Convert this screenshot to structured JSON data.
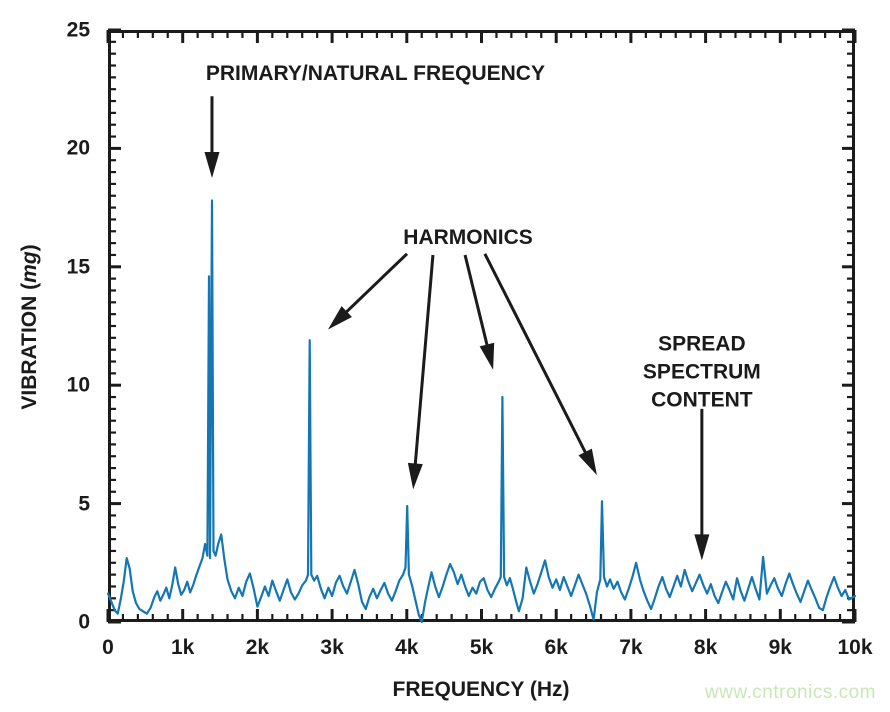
{
  "figure": {
    "background": "#ffffff",
    "text_color": "#1b1b1b",
    "watermark": {
      "text": "www.cntronics.com",
      "color": "#c9e7b4"
    }
  },
  "chart_data": {
    "type": "line",
    "title": "",
    "xlabel": "FREQUENCY (Hz)",
    "ylabel": "VIBRATION (mg)",
    "ylabel_parts": {
      "prefix": "VIBRATION (",
      "italic": "mg",
      "suffix": ")"
    },
    "xlim": [
      0,
      10000
    ],
    "ylim": [
      0,
      25
    ],
    "grid": false,
    "legend": null,
    "x_tick_values": [
      0,
      1000,
      2000,
      3000,
      4000,
      5000,
      6000,
      7000,
      8000,
      9000,
      10000
    ],
    "x_tick_labels": [
      "0",
      "1k",
      "2k",
      "3k",
      "4k",
      "5k",
      "6k",
      "7k",
      "8k",
      "9k",
      "10k"
    ],
    "x_minor_step": 200,
    "y_tick_values": [
      0,
      5,
      10,
      15,
      20,
      25
    ],
    "y_tick_labels": [
      "0",
      "5",
      "10",
      "15",
      "20",
      "25"
    ],
    "y_minor_step": 0.5,
    "line_color": "#1476b4",
    "frame_color": "#1b1b1b",
    "peaks": [
      {
        "label": "primary/natural frequency",
        "freq_hz": 1392,
        "vibration_mg": 17.8
      },
      {
        "label": "harmonic",
        "freq_hz": 2700,
        "vibration_mg": 11.9
      },
      {
        "label": "harmonic",
        "freq_hz": 4005,
        "vibration_mg": 4.9
      },
      {
        "label": "harmonic",
        "freq_hz": 5280,
        "vibration_mg": 9.5
      },
      {
        "label": "harmonic",
        "freq_hz": 6613,
        "vibration_mg": 5.1
      }
    ],
    "annotations": [
      {
        "id": "primary-label",
        "text": "PRIMARY/NATURAL FREQUENCY",
        "x": 3580,
        "y": 23.15
      },
      {
        "id": "harmonics-label",
        "text": "HARMONICS",
        "x": 4820,
        "y": 16.2
      },
      {
        "id": "spread-label",
        "text": "SPREAD SPECTRUM\nCONTENT",
        "x": 7950,
        "y": 10.55
      }
    ],
    "arrows": [
      {
        "from": [
          1392,
          22.2
        ],
        "to": [
          1392,
          18.75
        ]
      },
      {
        "from": [
          4003,
          15.55
        ],
        "to": [
          2945,
          12.35
        ]
      },
      {
        "from": [
          4350,
          15.5
        ],
        "to": [
          4085,
          5.6
        ]
      },
      {
        "from": [
          4780,
          15.5
        ],
        "to": [
          5155,
          10.65
        ]
      },
      {
        "from": [
          5045,
          15.55
        ],
        "to": [
          6545,
          6.2
        ]
      },
      {
        "from": [
          7950,
          9.0
        ],
        "to": [
          7950,
          2.6
        ]
      }
    ],
    "series": [
      {
        "name": "vibration_spectrum",
        "points": [
          [
            0,
            1.2
          ],
          [
            45,
            0.85
          ],
          [
            90,
            0.5
          ],
          [
            130,
            0.35
          ],
          [
            170,
            0.95
          ],
          [
            210,
            1.7
          ],
          [
            250,
            2.7
          ],
          [
            290,
            2.25
          ],
          [
            330,
            1.3
          ],
          [
            375,
            0.8
          ],
          [
            420,
            0.55
          ],
          [
            470,
            0.45
          ],
          [
            520,
            0.35
          ],
          [
            570,
            0.6
          ],
          [
            620,
            1.05
          ],
          [
            660,
            1.3
          ],
          [
            700,
            0.9
          ],
          [
            740,
            1.15
          ],
          [
            780,
            1.45
          ],
          [
            820,
            1.0
          ],
          [
            860,
            1.55
          ],
          [
            900,
            2.3
          ],
          [
            940,
            1.6
          ],
          [
            980,
            1.15
          ],
          [
            1020,
            1.35
          ],
          [
            1060,
            1.7
          ],
          [
            1100,
            1.25
          ],
          [
            1145,
            1.6
          ],
          [
            1185,
            2.0
          ],
          [
            1225,
            2.35
          ],
          [
            1265,
            2.7
          ],
          [
            1300,
            3.3
          ],
          [
            1330,
            2.8
          ],
          [
            1352,
            14.6
          ],
          [
            1366,
            2.7
          ],
          [
            1392,
            17.8
          ],
          [
            1412,
            3.0
          ],
          [
            1440,
            2.8
          ],
          [
            1475,
            3.3
          ],
          [
            1515,
            3.7
          ],
          [
            1555,
            2.7
          ],
          [
            1600,
            1.8
          ],
          [
            1650,
            1.3
          ],
          [
            1700,
            1.0
          ],
          [
            1750,
            1.45
          ],
          [
            1800,
            1.1
          ],
          [
            1850,
            1.7
          ],
          [
            1900,
            2.05
          ],
          [
            1950,
            1.4
          ],
          [
            2000,
            0.65
          ],
          [
            2050,
            1.05
          ],
          [
            2100,
            1.5
          ],
          [
            2150,
            1.1
          ],
          [
            2200,
            1.75
          ],
          [
            2250,
            1.3
          ],
          [
            2300,
            0.9
          ],
          [
            2350,
            1.35
          ],
          [
            2400,
            1.8
          ],
          [
            2450,
            1.25
          ],
          [
            2500,
            0.95
          ],
          [
            2550,
            1.2
          ],
          [
            2600,
            1.55
          ],
          [
            2650,
            1.75
          ],
          [
            2678,
            2.0
          ],
          [
            2700,
            11.9
          ],
          [
            2722,
            2.0
          ],
          [
            2760,
            1.75
          ],
          [
            2800,
            1.95
          ],
          [
            2850,
            1.4
          ],
          [
            2900,
            1.0
          ],
          [
            2950,
            1.45
          ],
          [
            3000,
            1.1
          ],
          [
            3050,
            1.65
          ],
          [
            3100,
            1.95
          ],
          [
            3150,
            1.5
          ],
          [
            3200,
            1.2
          ],
          [
            3250,
            1.7
          ],
          [
            3300,
            2.2
          ],
          [
            3350,
            1.6
          ],
          [
            3400,
            0.85
          ],
          [
            3450,
            0.55
          ],
          [
            3500,
            1.05
          ],
          [
            3550,
            1.4
          ],
          [
            3600,
            1.0
          ],
          [
            3650,
            1.35
          ],
          [
            3700,
            1.65
          ],
          [
            3750,
            1.2
          ],
          [
            3800,
            0.9
          ],
          [
            3850,
            1.3
          ],
          [
            3900,
            1.75
          ],
          [
            3950,
            2.0
          ],
          [
            3982,
            2.3
          ],
          [
            4005,
            4.9
          ],
          [
            4028,
            2.0
          ],
          [
            4070,
            1.55
          ],
          [
            4120,
            0.85
          ],
          [
            4160,
            0.3
          ],
          [
            4200,
            0.0
          ],
          [
            4245,
            0.85
          ],
          [
            4285,
            1.45
          ],
          [
            4330,
            2.1
          ],
          [
            4380,
            1.5
          ],
          [
            4430,
            1.05
          ],
          [
            4480,
            1.5
          ],
          [
            4530,
            2.0
          ],
          [
            4580,
            2.45
          ],
          [
            4630,
            2.1
          ],
          [
            4680,
            1.6
          ],
          [
            4730,
            2.0
          ],
          [
            4780,
            1.5
          ],
          [
            4830,
            1.1
          ],
          [
            4880,
            1.45
          ],
          [
            4930,
            1.2
          ],
          [
            4980,
            1.7
          ],
          [
            5030,
            1.85
          ],
          [
            5080,
            1.35
          ],
          [
            5130,
            1.05
          ],
          [
            5180,
            1.4
          ],
          [
            5230,
            1.7
          ],
          [
            5258,
            1.9
          ],
          [
            5280,
            9.5
          ],
          [
            5302,
            1.9
          ],
          [
            5340,
            1.55
          ],
          [
            5380,
            1.85
          ],
          [
            5420,
            1.4
          ],
          [
            5460,
            0.9
          ],
          [
            5500,
            0.45
          ],
          [
            5550,
            1.0
          ],
          [
            5600,
            2.3
          ],
          [
            5650,
            1.7
          ],
          [
            5700,
            1.2
          ],
          [
            5750,
            1.6
          ],
          [
            5800,
            2.1
          ],
          [
            5850,
            2.6
          ],
          [
            5900,
            1.9
          ],
          [
            5950,
            1.45
          ],
          [
            6000,
            1.8
          ],
          [
            6050,
            1.35
          ],
          [
            6100,
            1.9
          ],
          [
            6150,
            1.5
          ],
          [
            6200,
            1.1
          ],
          [
            6250,
            1.55
          ],
          [
            6300,
            2.0
          ],
          [
            6350,
            1.6
          ],
          [
            6400,
            1.2
          ],
          [
            6450,
            0.7
          ],
          [
            6500,
            0.1
          ],
          [
            6545,
            1.25
          ],
          [
            6590,
            1.8
          ],
          [
            6613,
            5.1
          ],
          [
            6640,
            1.9
          ],
          [
            6680,
            1.5
          ],
          [
            6720,
            1.8
          ],
          [
            6770,
            1.4
          ],
          [
            6820,
            1.7
          ],
          [
            6870,
            1.25
          ],
          [
            6920,
            0.95
          ],
          [
            6970,
            1.4
          ],
          [
            7020,
            1.9
          ],
          [
            7070,
            2.5
          ],
          [
            7120,
            1.8
          ],
          [
            7170,
            1.3
          ],
          [
            7220,
            0.9
          ],
          [
            7270,
            0.55
          ],
          [
            7320,
            1.0
          ],
          [
            7370,
            1.5
          ],
          [
            7420,
            1.9
          ],
          [
            7470,
            1.4
          ],
          [
            7520,
            1.05
          ],
          [
            7570,
            1.5
          ],
          [
            7620,
            1.95
          ],
          [
            7670,
            1.5
          ],
          [
            7720,
            2.2
          ],
          [
            7770,
            1.7
          ],
          [
            7820,
            1.3
          ],
          [
            7870,
            1.65
          ],
          [
            7920,
            2.0
          ],
          [
            7970,
            1.55
          ],
          [
            8020,
            1.2
          ],
          [
            8070,
            1.6
          ],
          [
            8120,
            1.1
          ],
          [
            8170,
            0.8
          ],
          [
            8220,
            1.25
          ],
          [
            8270,
            1.7
          ],
          [
            8320,
            1.35
          ],
          [
            8370,
            0.95
          ],
          [
            8420,
            1.85
          ],
          [
            8470,
            1.3
          ],
          [
            8520,
            0.9
          ],
          [
            8570,
            1.4
          ],
          [
            8620,
            1.9
          ],
          [
            8670,
            1.4
          ],
          [
            8720,
            0.95
          ],
          [
            8770,
            2.75
          ],
          [
            8820,
            1.2
          ],
          [
            8870,
            1.55
          ],
          [
            8920,
            1.85
          ],
          [
            8970,
            1.4
          ],
          [
            9020,
            1.1
          ],
          [
            9070,
            1.6
          ],
          [
            9120,
            2.05
          ],
          [
            9170,
            1.6
          ],
          [
            9220,
            1.2
          ],
          [
            9270,
            0.85
          ],
          [
            9320,
            1.3
          ],
          [
            9370,
            1.75
          ],
          [
            9420,
            1.35
          ],
          [
            9470,
            1.0
          ],
          [
            9520,
            0.6
          ],
          [
            9570,
            0.5
          ],
          [
            9620,
            1.05
          ],
          [
            9670,
            1.5
          ],
          [
            9720,
            1.9
          ],
          [
            9770,
            1.45
          ],
          [
            9820,
            1.1
          ],
          [
            9870,
            1.35
          ],
          [
            9920,
            0.95
          ],
          [
            10000,
            1.1
          ]
        ]
      }
    ]
  }
}
